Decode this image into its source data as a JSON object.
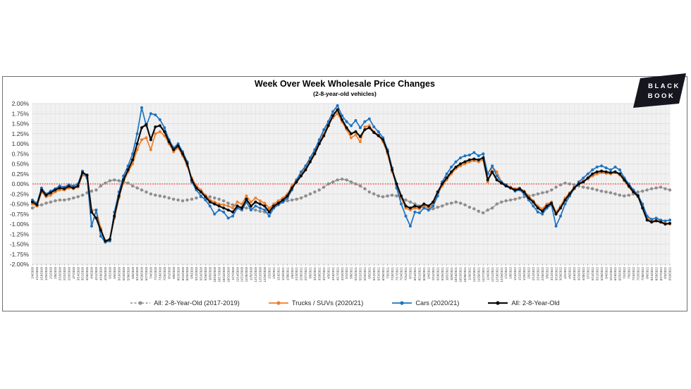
{
  "header": {
    "title": "Week Over Week Wholesale Price Changes",
    "subtitle": "(2-8-year-old vehicles)"
  },
  "logo": {
    "line1": "BLACK",
    "line2": "BOOK",
    "bg": "#16161f",
    "fg": "#ffffff"
  },
  "chart_data": {
    "type": "line",
    "title": "Week Over Week Wholesale Price Changes",
    "subtitle": "(2-8-year-old vehicles)",
    "xlabel": "",
    "ylabel": "",
    "ylim": [
      -2.0,
      2.0
    ],
    "y_step": 0.25,
    "y_tick_suffix": "%",
    "grid": true,
    "plot_bg": "#F2F2F2",
    "legend_position": "bottom",
    "zero_line": {
      "value": 0,
      "color": "#FF0000",
      "style": "dotted"
    },
    "x_labels": [
      "1/4/2020",
      "1/11/2020",
      "1/18/2020",
      "1/25/2020",
      "2/1/2020",
      "2/8/2020",
      "2/15/2020",
      "2/22/2020",
      "2/29/2020",
      "3/7/2020",
      "3/14/2020",
      "3/21/2020",
      "3/28/2020",
      "4/4/2020",
      "4/11/2020",
      "4/18/2020",
      "4/25/2020",
      "5/2/2020",
      "5/9/2020",
      "5/16/2020",
      "5/23/2020",
      "5/30/2020",
      "6/6/2020",
      "6/13/2020",
      "6/20/2020",
      "6/27/2020",
      "7/4/2020",
      "7/11/2020",
      "7/18/2020",
      "7/25/2020",
      "8/1/2020",
      "8/8/2020",
      "8/15/2020",
      "8/22/2020",
      "8/29/2020",
      "9/5/2020",
      "9/12/2020",
      "9/19/2020",
      "9/26/2020",
      "10/3/2020",
      "10/10/2020",
      "10/17/2020",
      "10/24/2020",
      "10/31/2020",
      "11/7/2020",
      "11/14/2020",
      "11/21/2020",
      "11/28/2020",
      "12/5/2020",
      "12/12/2020",
      "12/19/2020",
      "12/26/2020",
      "1/2/2021",
      "1/9/2021",
      "1/16/2021",
      "1/23/2021",
      "1/30/2021",
      "2/6/2021",
      "2/13/2021",
      "2/20/2021",
      "2/27/2021",
      "3/6/2021",
      "3/13/2021",
      "3/20/2021",
      "3/27/2021",
      "4/3/2021",
      "4/10/2021",
      "4/17/2021",
      "4/24/2021",
      "5/1/2021",
      "5/8/2021",
      "5/15/2021",
      "5/22/2021",
      "5/29/2021",
      "6/5/2021",
      "6/12/2021",
      "6/19/2021",
      "6/26/2021",
      "7/3/2021",
      "7/10/2021",
      "7/17/2021",
      "7/24/2021",
      "7/31/2021",
      "8/7/2021",
      "8/14/2021",
      "8/21/2021",
      "8/28/2021",
      "9/4/2021",
      "9/11/2021",
      "9/18/2021",
      "9/25/2021",
      "10/2/2021",
      "10/9/2021",
      "10/16/2021",
      "10/23/2021",
      "10/30/2021",
      "11/6/2021",
      "11/13/2021",
      "11/20/2021",
      "11/27/2021",
      "12/4/2021",
      "12/11/2021",
      "12/18/2021",
      "12/25/2021",
      "1/1/2022",
      "1/8/2022",
      "1/15/2022",
      "1/22/2022",
      "1/29/2022",
      "2/5/2022",
      "2/12/2022",
      "2/19/2022",
      "2/26/2022",
      "3/5/2022",
      "3/12/2022",
      "3/19/2022",
      "3/26/2022",
      "4/2/2022",
      "4/9/2022",
      "4/16/2022",
      "4/23/2022",
      "4/30/2022",
      "5/7/2022",
      "5/14/2022",
      "5/21/2022",
      "5/28/2022",
      "6/4/2022",
      "6/11/2022",
      "6/18/2022",
      "6/25/2022",
      "7/2/2022",
      "7/9/2022",
      "7/16/2022",
      "7/23/2022",
      "7/30/2022",
      "8/6/2022",
      "8/13/2022",
      "8/20/2022",
      "8/27/2022",
      "9/3/2022",
      "9/10/2022"
    ],
    "series": [
      {
        "key": "all-2017-2019",
        "name": "All: 2-8-Year-Old (2017-2019)",
        "color": "#8E8E8E",
        "dash": "4 2.6",
        "width": 1.3,
        "marker_r": 2.2,
        "values": [
          -0.6,
          -0.55,
          -0.52,
          -0.48,
          -0.45,
          -0.42,
          -0.4,
          -0.4,
          -0.38,
          -0.35,
          -0.32,
          -0.28,
          -0.22,
          -0.18,
          -0.15,
          -0.05,
          0.02,
          0.08,
          0.1,
          0.08,
          0.05,
          0.02,
          -0.05,
          -0.1,
          -0.15,
          -0.2,
          -0.25,
          -0.28,
          -0.3,
          -0.32,
          -0.35,
          -0.38,
          -0.4,
          -0.42,
          -0.4,
          -0.38,
          -0.35,
          -0.32,
          -0.3,
          -0.32,
          -0.35,
          -0.38,
          -0.42,
          -0.48,
          -0.52,
          -0.55,
          -0.58,
          -0.6,
          -0.62,
          -0.65,
          -0.68,
          -0.7,
          -0.62,
          -0.55,
          -0.5,
          -0.45,
          -0.42,
          -0.4,
          -0.38,
          -0.35,
          -0.3,
          -0.25,
          -0.2,
          -0.15,
          -0.08,
          0.0,
          0.05,
          0.1,
          0.12,
          0.1,
          0.05,
          0.0,
          -0.05,
          -0.12,
          -0.2,
          -0.25,
          -0.3,
          -0.32,
          -0.3,
          -0.28,
          -0.3,
          -0.35,
          -0.4,
          -0.45,
          -0.5,
          -0.55,
          -0.6,
          -0.65,
          -0.62,
          -0.58,
          -0.55,
          -0.5,
          -0.48,
          -0.45,
          -0.48,
          -0.52,
          -0.58,
          -0.62,
          -0.68,
          -0.72,
          -0.65,
          -0.6,
          -0.5,
          -0.45,
          -0.42,
          -0.4,
          -0.38,
          -0.35,
          -0.32,
          -0.3,
          -0.28,
          -0.25,
          -0.22,
          -0.2,
          -0.15,
          -0.08,
          -0.02,
          0.02,
          0.0,
          -0.02,
          -0.05,
          -0.08,
          -0.1,
          -0.12,
          -0.15,
          -0.18,
          -0.2,
          -0.22,
          -0.25,
          -0.28,
          -0.3,
          -0.28,
          -0.25,
          -0.2,
          -0.18,
          -0.15,
          -0.12,
          -0.1,
          -0.08,
          -0.12,
          -0.15
        ]
      },
      {
        "key": "trucks-suvs-2020-21",
        "name": "Trucks / SUVs (2020/21)",
        "color": "#F07D29",
        "dash": null,
        "width": 1.7,
        "marker_r": 2.0,
        "values": [
          -0.5,
          -0.55,
          -0.2,
          -0.32,
          -0.28,
          -0.2,
          -0.15,
          -0.15,
          -0.1,
          -0.12,
          -0.08,
          0.22,
          0.18,
          -0.65,
          -0.65,
          -1.1,
          -1.45,
          -1.4,
          -0.85,
          -0.35,
          0.05,
          0.3,
          0.5,
          0.85,
          1.1,
          1.15,
          0.85,
          1.25,
          1.3,
          1.2,
          1.0,
          0.8,
          0.9,
          0.7,
          0.45,
          0.15,
          -0.05,
          -0.15,
          -0.28,
          -0.4,
          -0.45,
          -0.5,
          -0.52,
          -0.55,
          -0.6,
          -0.45,
          -0.5,
          -0.3,
          -0.45,
          -0.35,
          -0.42,
          -0.48,
          -0.6,
          -0.5,
          -0.42,
          -0.35,
          -0.25,
          -0.05,
          0.1,
          0.25,
          0.4,
          0.6,
          0.8,
          1.05,
          1.25,
          1.5,
          1.65,
          1.75,
          1.55,
          1.35,
          1.15,
          1.22,
          1.05,
          1.42,
          1.45,
          1.3,
          1.22,
          1.05,
          0.75,
          0.3,
          -0.05,
          -0.35,
          -0.6,
          -0.65,
          -0.6,
          -0.62,
          -0.55,
          -0.6,
          -0.5,
          -0.25,
          -0.05,
          0.1,
          0.25,
          0.38,
          0.45,
          0.5,
          0.55,
          0.58,
          0.55,
          0.6,
          0.05,
          0.42,
          0.3,
          0.05,
          -0.02,
          -0.08,
          -0.12,
          -0.1,
          -0.18,
          -0.3,
          -0.42,
          -0.55,
          -0.62,
          -0.5,
          -0.45,
          -0.7,
          -0.55,
          -0.35,
          -0.22,
          -0.08,
          0.02,
          0.08,
          0.12,
          0.2,
          0.25,
          0.28,
          0.26,
          0.25,
          0.28,
          0.22,
          0.08,
          -0.08,
          -0.22,
          -0.32,
          -0.55,
          -0.85,
          -0.92,
          -0.9,
          -0.93,
          -0.98,
          -1.0
        ]
      },
      {
        "key": "cars-2020-21",
        "name": "Cars (2020/21)",
        "color": "#1C73C4",
        "dash": null,
        "width": 1.7,
        "marker_r": 2.0,
        "values": [
          -0.4,
          -0.48,
          -0.1,
          -0.25,
          -0.18,
          -0.12,
          -0.05,
          -0.08,
          -0.02,
          -0.05,
          0.0,
          0.32,
          0.15,
          -1.05,
          -0.65,
          -1.3,
          -1.45,
          -1.42,
          -0.7,
          -0.2,
          0.2,
          0.45,
          0.75,
          1.25,
          1.9,
          1.45,
          1.75,
          1.72,
          1.6,
          1.4,
          1.1,
          0.9,
          1.0,
          0.8,
          0.55,
          0.05,
          -0.15,
          -0.3,
          -0.4,
          -0.55,
          -0.75,
          -0.65,
          -0.7,
          -0.85,
          -0.8,
          -0.6,
          -0.65,
          -0.45,
          -0.65,
          -0.55,
          -0.6,
          -0.65,
          -0.8,
          -0.6,
          -0.52,
          -0.45,
          -0.35,
          -0.15,
          0.1,
          0.3,
          0.45,
          0.65,
          0.85,
          1.1,
          1.35,
          1.55,
          1.8,
          1.95,
          1.7,
          1.55,
          1.45,
          1.58,
          1.4,
          1.55,
          1.62,
          1.42,
          1.3,
          1.15,
          0.85,
          0.4,
          -0.1,
          -0.5,
          -0.8,
          -1.05,
          -0.7,
          -0.72,
          -0.6,
          -0.65,
          -0.55,
          -0.3,
          0.05,
          0.25,
          0.42,
          0.55,
          0.65,
          0.7,
          0.72,
          0.78,
          0.7,
          0.75,
          0.25,
          0.45,
          0.2,
          0.05,
          -0.02,
          -0.1,
          -0.18,
          -0.15,
          -0.25,
          -0.4,
          -0.55,
          -0.7,
          -0.75,
          -0.6,
          -0.52,
          -1.05,
          -0.8,
          -0.5,
          -0.3,
          -0.12,
          0.05,
          0.15,
          0.25,
          0.35,
          0.42,
          0.45,
          0.4,
          0.35,
          0.42,
          0.35,
          0.15,
          0.0,
          -0.15,
          -0.28,
          -0.5,
          -0.8,
          -0.88,
          -0.85,
          -0.9,
          -0.92,
          -0.9
        ]
      },
      {
        "key": "all-2-8-year-old",
        "name": "All: 2-8-Year-Old",
        "color": "#0C0C0C",
        "dash": null,
        "width": 2.2,
        "marker_r": 2.1,
        "values": [
          -0.45,
          -0.52,
          -0.15,
          -0.28,
          -0.22,
          -0.15,
          -0.1,
          -0.12,
          -0.06,
          -0.1,
          -0.05,
          0.28,
          0.22,
          -0.7,
          -0.85,
          -1.15,
          -1.42,
          -1.38,
          -0.8,
          -0.3,
          0.1,
          0.35,
          0.6,
          1.0,
          1.4,
          1.48,
          1.1,
          1.42,
          1.45,
          1.3,
          1.05,
          0.85,
          0.95,
          0.75,
          0.5,
          0.1,
          -0.1,
          -0.2,
          -0.32,
          -0.45,
          -0.5,
          -0.55,
          -0.6,
          -0.65,
          -0.7,
          -0.55,
          -0.6,
          -0.38,
          -0.55,
          -0.45,
          -0.5,
          -0.55,
          -0.7,
          -0.55,
          -0.48,
          -0.4,
          -0.3,
          -0.1,
          0.05,
          0.2,
          0.35,
          0.55,
          0.75,
          1.0,
          1.2,
          1.45,
          1.7,
          1.85,
          1.6,
          1.4,
          1.25,
          1.3,
          1.18,
          1.35,
          1.4,
          1.28,
          1.2,
          1.1,
          0.8,
          0.35,
          0.0,
          -0.3,
          -0.55,
          -0.6,
          -0.55,
          -0.58,
          -0.5,
          -0.55,
          -0.45,
          -0.2,
          0.0,
          0.15,
          0.3,
          0.42,
          0.5,
          0.55,
          0.6,
          0.62,
          0.6,
          0.65,
          0.1,
          0.3,
          0.1,
          0.02,
          -0.05,
          -0.1,
          -0.15,
          -0.12,
          -0.2,
          -0.35,
          -0.45,
          -0.6,
          -0.68,
          -0.55,
          -0.48,
          -0.75,
          -0.6,
          -0.4,
          -0.25,
          -0.1,
          0.0,
          0.05,
          0.15,
          0.25,
          0.3,
          0.32,
          0.3,
          0.28,
          0.3,
          0.25,
          0.1,
          -0.05,
          -0.2,
          -0.3,
          -0.6,
          -0.9,
          -0.95,
          -0.92,
          -0.95,
          -1.0,
          -0.98
        ]
      }
    ]
  }
}
